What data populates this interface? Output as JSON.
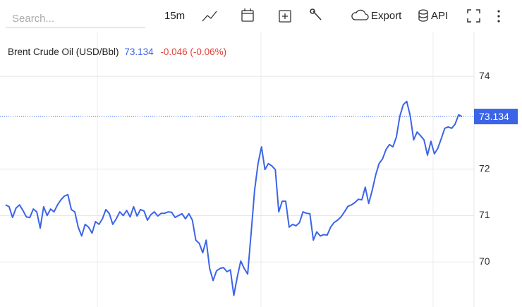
{
  "toolbar": {
    "search_placeholder": "Search...",
    "interval": "15m",
    "export": "Export",
    "api": "API"
  },
  "chart_data": {
    "type": "line",
    "title": "Brent Crude Oil (USD/Bbl)",
    "last_price": 73.134,
    "change_label": "-0.046 (-0.06%)",
    "color": "#3b64e8",
    "ylim": [
      69.03,
      74.96
    ],
    "yticks": [
      70,
      71,
      72,
      74
    ],
    "grid": true,
    "values": [
      71.23,
      71.19,
      70.96,
      71.16,
      71.23,
      71.11,
      70.97,
      70.96,
      71.14,
      71.08,
      70.73,
      71.19,
      71.0,
      71.14,
      71.08,
      71.23,
      71.34,
      71.42,
      71.45,
      71.13,
      71.08,
      70.75,
      70.56,
      70.81,
      70.75,
      70.62,
      70.87,
      70.81,
      70.93,
      71.13,
      71.04,
      70.81,
      70.93,
      71.08,
      71.0,
      71.11,
      70.97,
      71.19,
      70.99,
      71.13,
      71.1,
      70.9,
      71.02,
      71.08,
      70.99,
      71.05,
      71.05,
      71.08,
      71.07,
      70.96,
      71.0,
      71.04,
      70.93,
      71.04,
      70.9,
      70.47,
      70.4,
      70.2,
      70.47,
      69.86,
      69.6,
      69.81,
      69.86,
      69.88,
      69.79,
      69.83,
      69.28,
      69.68,
      70.02,
      69.86,
      69.74,
      70.62,
      71.54,
      72.12,
      72.48,
      71.99,
      72.12,
      72.07,
      71.99,
      71.08,
      71.31,
      71.31,
      70.75,
      70.81,
      70.78,
      70.85,
      71.08,
      71.05,
      71.04,
      70.47,
      70.65,
      70.56,
      70.59,
      70.58,
      70.75,
      70.85,
      70.9,
      70.97,
      71.08,
      71.2,
      71.23,
      71.28,
      71.35,
      71.34,
      71.61,
      71.26,
      71.54,
      71.87,
      72.12,
      72.22,
      72.42,
      72.53,
      72.48,
      72.69,
      73.14,
      73.39,
      73.46,
      73.15,
      72.63,
      72.8,
      72.72,
      72.63,
      72.3,
      72.6,
      72.33,
      72.45,
      72.66,
      72.88,
      72.91,
      72.88,
      72.97,
      73.17,
      73.134
    ]
  }
}
